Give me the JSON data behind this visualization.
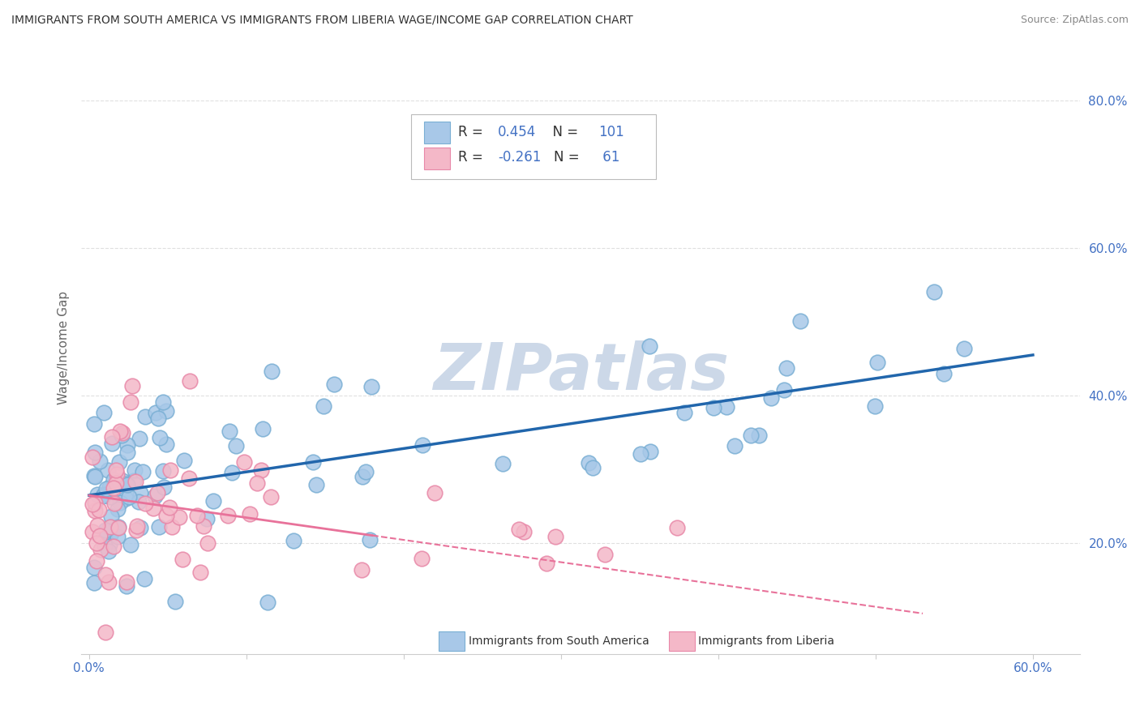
{
  "title": "IMMIGRANTS FROM SOUTH AMERICA VS IMMIGRANTS FROM LIBERIA WAGE/INCOME GAP CORRELATION CHART",
  "source": "Source: ZipAtlas.com",
  "ylabel": "Wage/Income Gap",
  "xlim": [
    -0.005,
    0.63
  ],
  "ylim": [
    0.05,
    0.88
  ],
  "xticks": [
    0.0,
    0.1,
    0.2,
    0.3,
    0.4,
    0.5,
    0.6
  ],
  "xticklabels": [
    "0.0%",
    "",
    "",
    "",
    "",
    "",
    "60.0%"
  ],
  "yticks": [
    0.2,
    0.4,
    0.6,
    0.8
  ],
  "yticklabels": [
    "20.0%",
    "40.0%",
    "60.0%",
    "80.0%"
  ],
  "blue_color": "#a8c8e8",
  "blue_edge_color": "#7aafd4",
  "pink_color": "#f4b8c8",
  "pink_edge_color": "#e888a8",
  "blue_line_color": "#2166ac",
  "pink_line_color": "#e8729a",
  "watermark": "ZIPatlas",
  "watermark_color": "#ccd8e8",
  "background_color": "#ffffff",
  "grid_color": "#cccccc",
  "tick_label_color": "#4472c4",
  "ylabel_color": "#666666",
  "title_color": "#333333",
  "source_color": "#888888",
  "blue_line_x0": 0.0,
  "blue_line_x1": 0.6,
  "blue_line_y0": 0.265,
  "blue_line_y1": 0.455,
  "pink_line_x0": 0.0,
  "pink_line_x1": 0.53,
  "pink_line_y0": 0.265,
  "pink_line_y1": 0.105,
  "marker_size": 180,
  "marker_lw": 1.2
}
